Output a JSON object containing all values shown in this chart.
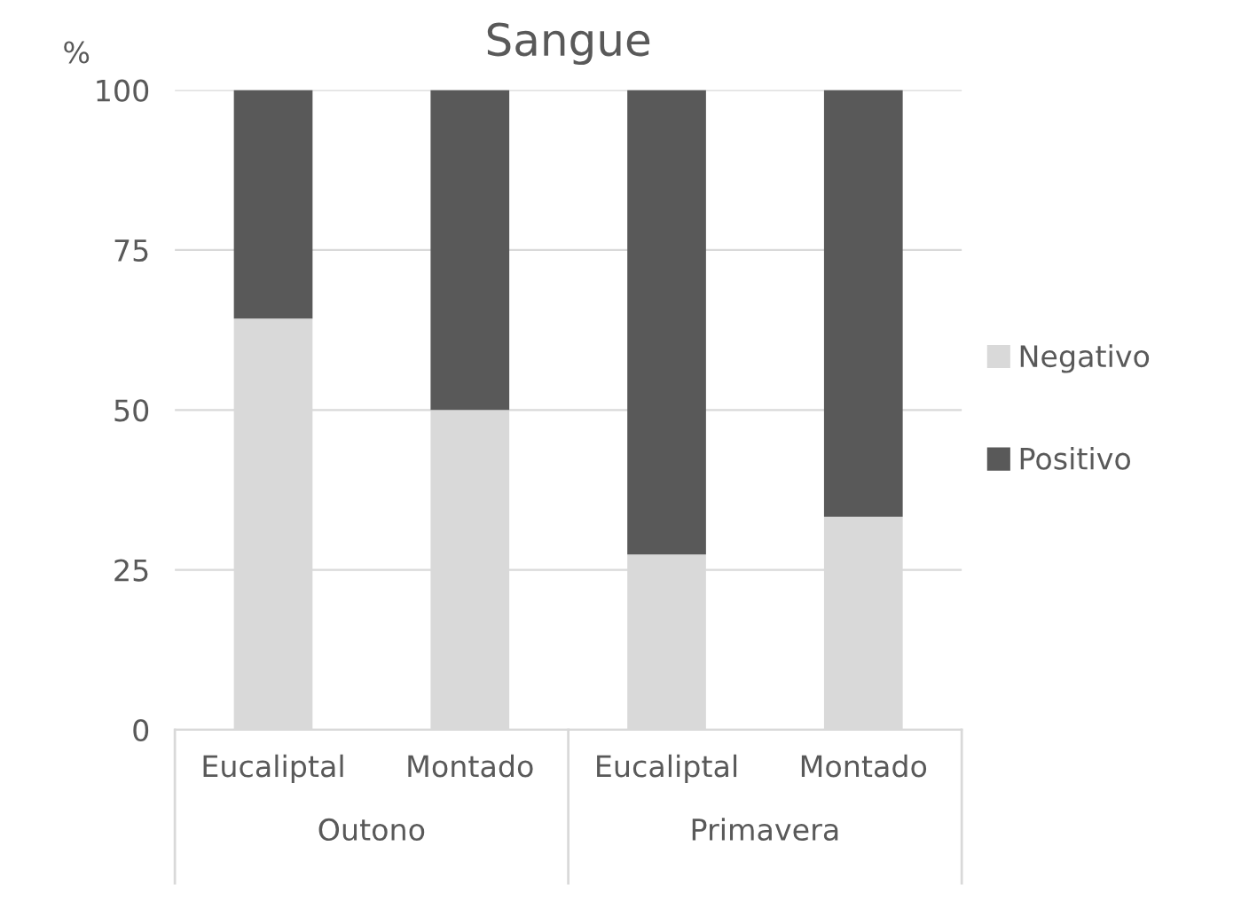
{
  "chart_data": {
    "type": "bar",
    "title": "Sangue",
    "ylabel": "%",
    "stacked": true,
    "categories": [
      "Eucaliptal",
      "Montado",
      "Eucaliptal",
      "Montado"
    ],
    "series": [
      {
        "name": "Negativo",
        "color": "#d9d9d9",
        "values": [
          64.3,
          50,
          27.4,
          33.3
        ]
      },
      {
        "name": "Positivo",
        "color": "#595959",
        "values": [
          35.7,
          50,
          72.6,
          66.7
        ]
      }
    ],
    "annotations": [
      "Outono",
      "Primavera"
    ],
    "ylim": [
      0,
      100
    ],
    "yticks": [
      0,
      25,
      50,
      75,
      100
    ],
    "grid": "y",
    "legend": "right"
  }
}
